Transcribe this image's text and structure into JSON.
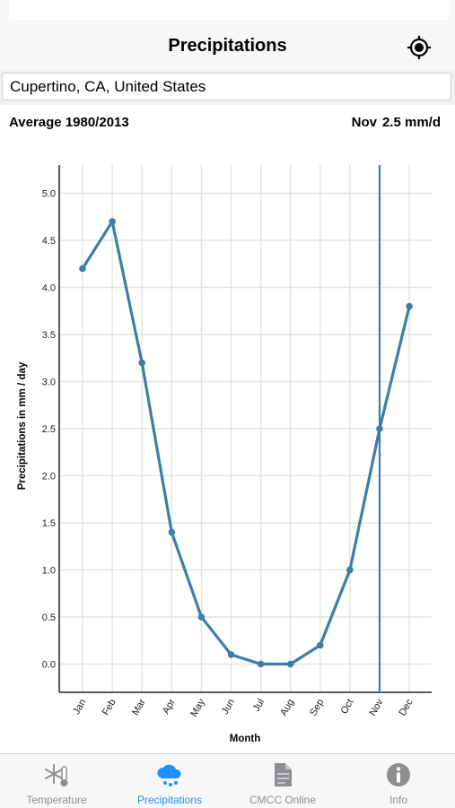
{
  "nav": {
    "title": "Precipitations"
  },
  "search": {
    "value": "Cupertino, CA, United States"
  },
  "info": {
    "average_label": "Average 1980/2013",
    "selected_month": "Nov",
    "selected_value": "2.5 mm/d"
  },
  "colors": {
    "line": "#3c7ea6",
    "accent": "#1e90ff",
    "inactive": "#8e8e93"
  },
  "chart_data": {
    "type": "line",
    "categories": [
      "Jan",
      "Feb",
      "Mar",
      "Apr",
      "May",
      "Jun",
      "Jul",
      "Aug",
      "Sep",
      "Oct",
      "Nov",
      "Dec"
    ],
    "values": [
      4.2,
      4.7,
      3.2,
      1.4,
      0.5,
      0.1,
      0.0,
      0.0,
      0.2,
      1.0,
      2.5,
      3.8
    ],
    "ylim": [
      -0.3,
      5.3
    ],
    "yticks": [
      "0.0",
      "0.5",
      "1.0",
      "1.5",
      "2.0",
      "2.5",
      "3.0",
      "3.5",
      "4.0",
      "4.5",
      "5.0"
    ],
    "ylabel": "Precipitations in mm / day",
    "xlabel": "Month",
    "grid": true,
    "highlight_category": "Nov"
  },
  "tabs": [
    {
      "label": "Temperature",
      "icon": "snowflake-thermometer-icon",
      "active": false
    },
    {
      "label": "Precipitations",
      "icon": "rain-cloud-icon",
      "active": true
    },
    {
      "label": "CMCC Online",
      "icon": "document-icon",
      "active": false
    },
    {
      "label": "Info",
      "icon": "info-icon",
      "active": false
    }
  ]
}
